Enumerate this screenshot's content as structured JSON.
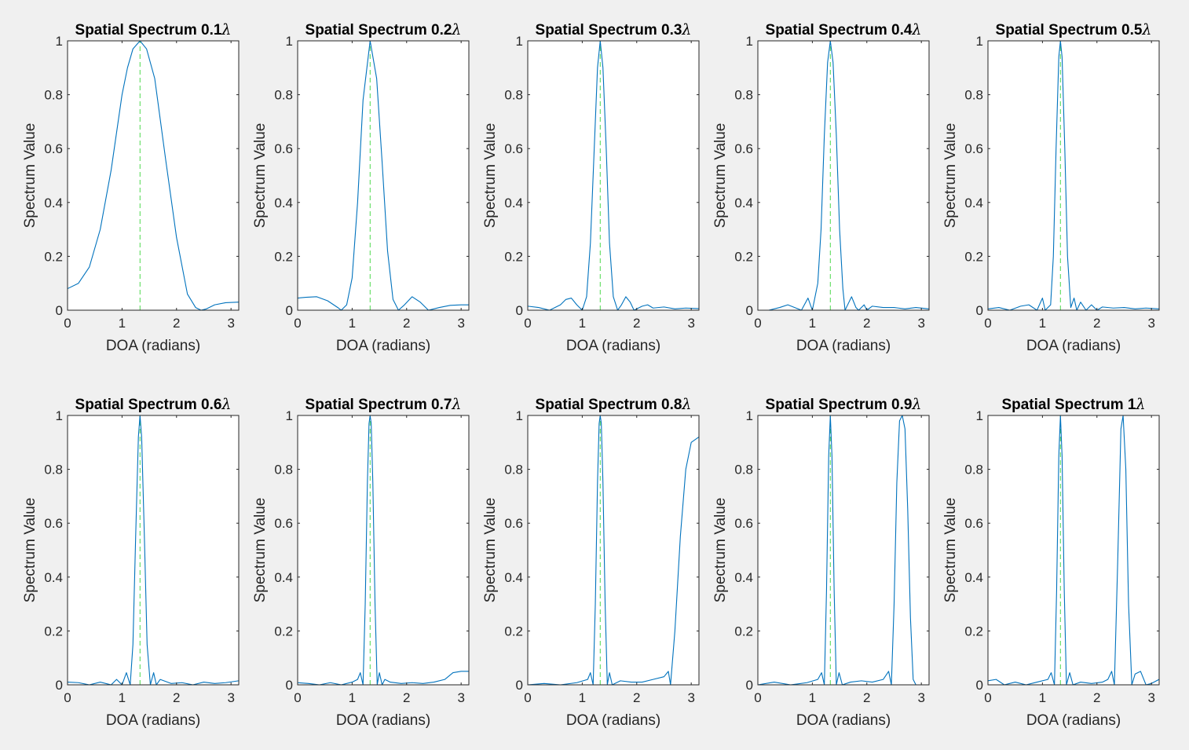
{
  "colors": {
    "background": "#f0f0f0",
    "axes_background": "#ffffff",
    "axis_line": "#262626",
    "spectrum_line": "#0072bd",
    "doa_marker": "#4dd94d"
  },
  "chart_data": [
    {
      "type": "line",
      "title": "Spatial Spectrum 0.1",
      "title_symbol": "λ",
      "xlabel": "DOA (radians)",
      "ylabel": "Spectrum Value",
      "xlim": [
        0,
        3.1416
      ],
      "ylim": [
        0,
        1
      ],
      "x_ticks": [
        0,
        1,
        2,
        3
      ],
      "y_ticks": [
        0,
        0.2,
        0.4,
        0.6,
        0.8,
        1
      ],
      "grid": false,
      "true_doa": 1.33,
      "series": [
        {
          "x": [
            0,
            0.2,
            0.4,
            0.6,
            0.8,
            1.0,
            1.1,
            1.2,
            1.33,
            1.45,
            1.6,
            1.8,
            2.0,
            2.2,
            2.35,
            2.45,
            2.55,
            2.7,
            2.9,
            3.14
          ],
          "values": [
            0.08,
            0.1,
            0.16,
            0.3,
            0.52,
            0.8,
            0.9,
            0.97,
            1.0,
            0.97,
            0.86,
            0.56,
            0.27,
            0.06,
            0.01,
            0.0,
            0.005,
            0.02,
            0.028,
            0.03
          ]
        }
      ]
    },
    {
      "type": "line",
      "title": "Spatial Spectrum 0.2",
      "title_symbol": "λ",
      "xlabel": "DOA (radians)",
      "ylabel": "Spectrum Value",
      "xlim": [
        0,
        3.1416
      ],
      "ylim": [
        0,
        1
      ],
      "x_ticks": [
        0,
        1,
        2,
        3
      ],
      "y_ticks": [
        0,
        0.2,
        0.4,
        0.6,
        0.8,
        1
      ],
      "grid": false,
      "true_doa": 1.33,
      "series": [
        {
          "x": [
            0,
            0.15,
            0.35,
            0.55,
            0.75,
            0.8,
            0.9,
            1.0,
            1.1,
            1.2,
            1.33,
            1.45,
            1.55,
            1.65,
            1.75,
            1.85,
            1.95,
            2.1,
            2.25,
            2.4,
            2.6,
            2.8,
            3.0,
            3.14
          ],
          "values": [
            0.045,
            0.048,
            0.05,
            0.035,
            0.008,
            0.0,
            0.02,
            0.12,
            0.4,
            0.78,
            1.0,
            0.86,
            0.55,
            0.22,
            0.04,
            0.0,
            0.018,
            0.05,
            0.03,
            0.0,
            0.01,
            0.018,
            0.02,
            0.02
          ]
        }
      ]
    },
    {
      "type": "line",
      "title": "Spatial Spectrum 0.3",
      "title_symbol": "λ",
      "xlabel": "DOA (radians)",
      "ylabel": "Spectrum Value",
      "xlim": [
        0,
        3.1416
      ],
      "ylim": [
        0,
        1
      ],
      "x_ticks": [
        0,
        1,
        2,
        3
      ],
      "y_ticks": [
        0,
        0.2,
        0.4,
        0.6,
        0.8,
        1
      ],
      "grid": false,
      "true_doa": 1.33,
      "series": [
        {
          "x": [
            0,
            0.2,
            0.4,
            0.6,
            0.7,
            0.8,
            0.9,
            1.0,
            1.08,
            1.15,
            1.22,
            1.28,
            1.33,
            1.38,
            1.44,
            1.5,
            1.57,
            1.65,
            1.72,
            1.8,
            1.88,
            1.95,
            2.1,
            2.2,
            2.3,
            2.5,
            2.7,
            2.9,
            3.14
          ],
          "values": [
            0.015,
            0.01,
            0.0,
            0.02,
            0.04,
            0.045,
            0.02,
            0.0,
            0.05,
            0.25,
            0.6,
            0.9,
            1.0,
            0.9,
            0.6,
            0.25,
            0.05,
            0.0,
            0.02,
            0.05,
            0.03,
            0.0,
            0.015,
            0.02,
            0.008,
            0.012,
            0.005,
            0.008,
            0.006
          ]
        }
      ]
    },
    {
      "type": "line",
      "title": "Spatial Spectrum 0.4",
      "title_symbol": "λ",
      "xlabel": "DOA (radians)",
      "ylabel": "Spectrum Value",
      "xlim": [
        0,
        3.1416
      ],
      "ylim": [
        0,
        1
      ],
      "x_ticks": [
        0,
        1,
        2,
        3
      ],
      "y_ticks": [
        0,
        0.2,
        0.4,
        0.6,
        0.8,
        1
      ],
      "grid": false,
      "true_doa": 1.33,
      "series": [
        {
          "x": [
            0,
            0.2,
            0.4,
            0.55,
            0.7,
            0.8,
            0.92,
            1.0,
            1.1,
            1.16,
            1.22,
            1.28,
            1.33,
            1.38,
            1.44,
            1.5,
            1.56,
            1.6,
            1.66,
            1.72,
            1.8,
            1.85,
            1.95,
            2.0,
            2.1,
            2.3,
            2.5,
            2.7,
            2.9,
            3.14
          ],
          "values": [
            0.0,
            0.0,
            0.01,
            0.02,
            0.008,
            0.0,
            0.045,
            0.0,
            0.1,
            0.3,
            0.65,
            0.92,
            1.0,
            0.92,
            0.65,
            0.3,
            0.08,
            0.0,
            0.025,
            0.05,
            0.01,
            0.0,
            0.02,
            0.0,
            0.015,
            0.01,
            0.01,
            0.005,
            0.01,
            0.005
          ]
        }
      ]
    },
    {
      "type": "line",
      "title": "Spatial Spectrum 0.5",
      "title_symbol": "λ",
      "xlabel": "DOA (radians)",
      "ylabel": "Spectrum Value",
      "xlim": [
        0,
        3.1416
      ],
      "ylim": [
        0,
        1
      ],
      "x_ticks": [
        0,
        1,
        2,
        3
      ],
      "y_ticks": [
        0,
        0.2,
        0.4,
        0.6,
        0.8,
        1
      ],
      "grid": false,
      "true_doa": 1.33,
      "series": [
        {
          "x": [
            0,
            0.2,
            0.4,
            0.6,
            0.75,
            0.9,
            1.0,
            1.05,
            1.15,
            1.2,
            1.25,
            1.3,
            1.33,
            1.36,
            1.41,
            1.46,
            1.52,
            1.58,
            1.63,
            1.7,
            1.8,
            1.9,
            2.0,
            2.1,
            2.3,
            2.5,
            2.7,
            2.9,
            3.14
          ],
          "values": [
            0.005,
            0.01,
            0.0,
            0.015,
            0.02,
            0.0,
            0.045,
            0.0,
            0.02,
            0.2,
            0.6,
            0.94,
            1.0,
            0.94,
            0.6,
            0.2,
            0.01,
            0.045,
            0.0,
            0.03,
            0.0,
            0.02,
            0.0,
            0.012,
            0.008,
            0.01,
            0.005,
            0.008,
            0.005
          ]
        }
      ]
    },
    {
      "type": "line",
      "title": "Spatial Spectrum 0.6",
      "title_symbol": "λ",
      "xlabel": "DOA (radians)",
      "ylabel": "Spectrum Value",
      "xlim": [
        0,
        3.1416
      ],
      "ylim": [
        0,
        1
      ],
      "x_ticks": [
        0,
        1,
        2,
        3
      ],
      "y_ticks": [
        0,
        0.2,
        0.4,
        0.6,
        0.8,
        1
      ],
      "grid": false,
      "true_doa": 1.33,
      "series": [
        {
          "x": [
            0,
            0.2,
            0.4,
            0.6,
            0.8,
            0.9,
            1.0,
            1.08,
            1.15,
            1.2,
            1.25,
            1.3,
            1.33,
            1.36,
            1.41,
            1.46,
            1.52,
            1.58,
            1.63,
            1.7,
            1.9,
            2.1,
            2.3,
            2.5,
            2.7,
            2.9,
            3.14
          ],
          "values": [
            0.01,
            0.008,
            0.0,
            0.01,
            0.0,
            0.02,
            0.0,
            0.045,
            0.0,
            0.15,
            0.55,
            0.92,
            1.0,
            0.92,
            0.55,
            0.15,
            0.0,
            0.045,
            0.0,
            0.02,
            0.005,
            0.008,
            0.0,
            0.01,
            0.005,
            0.008,
            0.015
          ]
        }
      ]
    },
    {
      "type": "line",
      "title": "Spatial Spectrum 0.7",
      "title_symbol": "λ",
      "xlabel": "DOA (radians)",
      "ylabel": "Spectrum Value",
      "xlim": [
        0,
        3.1416
      ],
      "ylim": [
        0,
        1
      ],
      "x_ticks": [
        0,
        1,
        2,
        3
      ],
      "y_ticks": [
        0,
        0.2,
        0.4,
        0.6,
        0.8,
        1
      ],
      "grid": false,
      "true_doa": 1.33,
      "series": [
        {
          "x": [
            0,
            0.2,
            0.4,
            0.6,
            0.8,
            1.0,
            1.1,
            1.15,
            1.2,
            1.24,
            1.28,
            1.31,
            1.33,
            1.35,
            1.38,
            1.42,
            1.46,
            1.5,
            1.55,
            1.6,
            1.7,
            1.9,
            2.1,
            2.3,
            2.5,
            2.7,
            2.85,
            3.0,
            3.14
          ],
          "values": [
            0.008,
            0.005,
            0.0,
            0.008,
            0.0,
            0.01,
            0.02,
            0.045,
            0.0,
            0.3,
            0.75,
            0.97,
            1.0,
            0.97,
            0.75,
            0.3,
            0.0,
            0.045,
            0.0,
            0.02,
            0.01,
            0.005,
            0.008,
            0.005,
            0.01,
            0.02,
            0.045,
            0.05,
            0.05
          ]
        }
      ]
    },
    {
      "type": "line",
      "title": "Spatial Spectrum 0.8",
      "title_symbol": "λ",
      "xlabel": "DOA (radians)",
      "ylabel": "Spectrum Value",
      "xlim": [
        0,
        3.1416
      ],
      "ylim": [
        0,
        1
      ],
      "x_ticks": [
        0,
        1,
        2,
        3
      ],
      "y_ticks": [
        0,
        0.2,
        0.4,
        0.6,
        0.8,
        1
      ],
      "grid": false,
      "true_doa": 1.33,
      "series": [
        {
          "x": [
            0,
            0.3,
            0.6,
            0.9,
            1.1,
            1.15,
            1.2,
            1.24,
            1.28,
            1.31,
            1.33,
            1.35,
            1.38,
            1.42,
            1.46,
            1.5,
            1.55,
            1.7,
            1.9,
            2.1,
            2.3,
            2.5,
            2.58,
            2.62,
            2.7,
            2.8,
            2.9,
            3.0,
            3.14
          ],
          "values": [
            0.0,
            0.005,
            0.0,
            0.008,
            0.02,
            0.045,
            0.0,
            0.3,
            0.75,
            0.97,
            1.0,
            0.97,
            0.75,
            0.3,
            0.0,
            0.045,
            0.0,
            0.015,
            0.01,
            0.01,
            0.02,
            0.03,
            0.05,
            0.0,
            0.2,
            0.55,
            0.8,
            0.9,
            0.92
          ]
        }
      ]
    },
    {
      "type": "line",
      "title": "Spatial Spectrum 0.9",
      "title_symbol": "λ",
      "xlabel": "DOA (radians)",
      "ylabel": "Spectrum Value",
      "xlim": [
        0,
        3.1416
      ],
      "ylim": [
        0,
        1
      ],
      "x_ticks": [
        0,
        1,
        2,
        3
      ],
      "y_ticks": [
        0,
        0.2,
        0.4,
        0.6,
        0.8,
        1
      ],
      "grid": false,
      "true_doa": 1.33,
      "series": [
        {
          "x": [
            0,
            0.3,
            0.6,
            0.9,
            1.1,
            1.17,
            1.22,
            1.26,
            1.3,
            1.33,
            1.36,
            1.4,
            1.44,
            1.49,
            1.55,
            1.7,
            1.9,
            2.1,
            2.3,
            2.4,
            2.45,
            2.5,
            2.55,
            2.6,
            2.65,
            2.7,
            2.75,
            2.8,
            2.85,
            2.9,
            3.14
          ],
          "values": [
            0.0,
            0.01,
            0.0,
            0.008,
            0.02,
            0.045,
            0.0,
            0.35,
            0.85,
            1.0,
            0.85,
            0.35,
            0.0,
            0.045,
            0.0,
            0.01,
            0.015,
            0.01,
            0.02,
            0.05,
            0.0,
            0.3,
            0.75,
            0.98,
            1.0,
            0.95,
            0.65,
            0.25,
            0.02,
            0.0,
            0.0
          ]
        }
      ]
    },
    {
      "type": "line",
      "title": "Spatial Spectrum 1",
      "title_symbol": "λ",
      "xlabel": "DOA (radians)",
      "ylabel": "Spectrum Value",
      "xlim": [
        0,
        3.1416
      ],
      "ylim": [
        0,
        1
      ],
      "x_ticks": [
        0,
        1,
        2,
        3
      ],
      "y_ticks": [
        0,
        0.2,
        0.4,
        0.6,
        0.8,
        1
      ],
      "grid": false,
      "true_doa": 1.33,
      "series": [
        {
          "x": [
            0,
            0.15,
            0.3,
            0.5,
            0.7,
            0.9,
            1.1,
            1.16,
            1.22,
            1.26,
            1.3,
            1.33,
            1.36,
            1.4,
            1.44,
            1.5,
            1.56,
            1.7,
            1.9,
            2.1,
            2.2,
            2.27,
            2.32,
            2.38,
            2.44,
            2.48,
            2.53,
            2.58,
            2.64,
            2.7,
            2.8,
            2.9,
            3.0,
            3.14
          ],
          "values": [
            0.015,
            0.02,
            0.0,
            0.01,
            0.0,
            0.01,
            0.02,
            0.045,
            0.0,
            0.35,
            0.85,
            1.0,
            0.85,
            0.35,
            0.0,
            0.045,
            0.0,
            0.01,
            0.005,
            0.01,
            0.02,
            0.05,
            0.0,
            0.45,
            0.95,
            1.0,
            0.8,
            0.3,
            0.0,
            0.04,
            0.05,
            0.0,
            0.005,
            0.02
          ]
        }
      ]
    }
  ]
}
